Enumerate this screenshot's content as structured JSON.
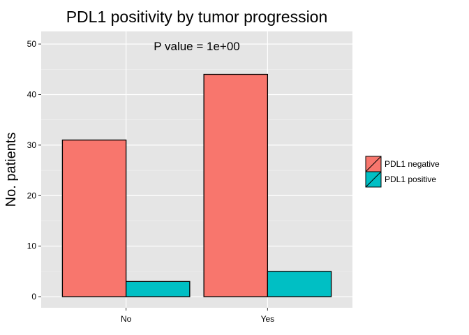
{
  "chart_data": {
    "type": "bar",
    "title": "PDL1 positivity by tumor progression",
    "annotation": "P value = 1e+00",
    "xlabel": "",
    "ylabel": "No. patients",
    "categories": [
      "No",
      "Yes"
    ],
    "series": [
      {
        "name": "PDL1 negative",
        "color": "#F8766D",
        "values": [
          31,
          44
        ]
      },
      {
        "name": "PDL1 positive",
        "color": "#00BFC4",
        "values": [
          3,
          5
        ]
      }
    ],
    "ylim": [
      -2.2,
      52.5
    ],
    "yticks": [
      0,
      10,
      20,
      30,
      40,
      50
    ],
    "grid": true,
    "panel_background": "#E5E5E5",
    "legend_position": "right"
  }
}
